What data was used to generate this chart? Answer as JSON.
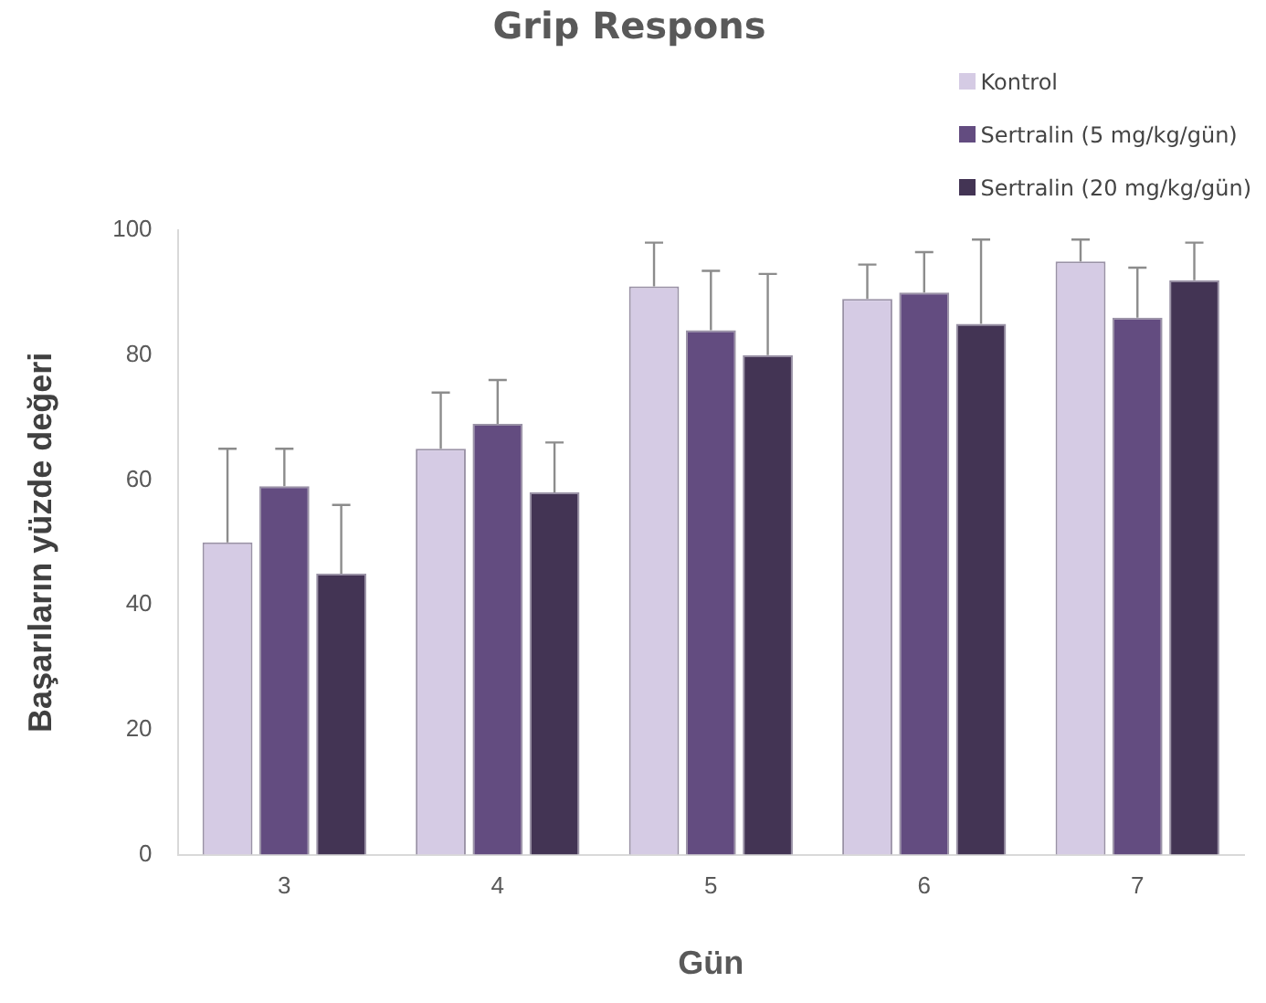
{
  "chart_data": {
    "type": "bar",
    "title": "Grip Respons",
    "xlabel": "Gün",
    "ylabel": "Başarıların yüzde değeri",
    "categories": [
      "3",
      "4",
      "5",
      "6",
      "7"
    ],
    "series": [
      {
        "name": "Kontrol",
        "color": "#d5cbe4",
        "values": [
          50,
          65,
          91,
          89,
          95
        ],
        "errors": [
          [
            50,
            65
          ],
          [
            65,
            74
          ],
          [
            91,
            98
          ],
          [
            89,
            94.5
          ],
          [
            95,
            98.5
          ]
        ]
      },
      {
        "name": "Sertralin (5 mg/kg/gün)",
        "color": "#634c80",
        "values": [
          59,
          69,
          84,
          90,
          86
        ],
        "errors": [
          [
            59,
            65
          ],
          [
            69,
            76
          ],
          [
            84,
            93.5
          ],
          [
            90,
            96.5
          ],
          [
            86,
            94
          ]
        ]
      },
      {
        "name": "Sertralin (20 mg/kg/gün)",
        "color": "#433454",
        "values": [
          45,
          58,
          80,
          85,
          92
        ],
        "errors": [
          [
            45,
            56
          ],
          [
            58,
            66
          ],
          [
            80,
            93
          ],
          [
            85,
            98.5
          ],
          [
            92,
            98
          ]
        ]
      }
    ],
    "ylim": [
      0,
      100
    ],
    "yticks": [
      0,
      20,
      40,
      60,
      80,
      100
    ],
    "grid": false,
    "legend": "top right"
  }
}
